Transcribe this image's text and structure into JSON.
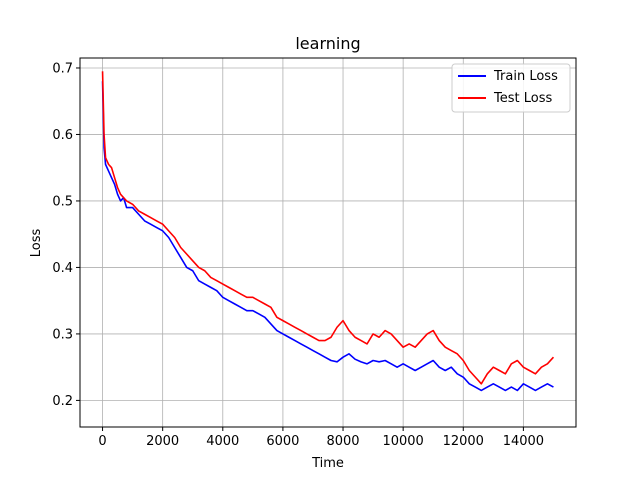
{
  "chart_data": {
    "type": "line",
    "title": "learning",
    "xlabel": "Time",
    "ylabel": "Loss",
    "xlim": [
      -750,
      15750
    ],
    "ylim": [
      0.16,
      0.715
    ],
    "xticks": [
      0,
      2000,
      4000,
      6000,
      8000,
      10000,
      12000,
      14000
    ],
    "yticks": [
      0.2,
      0.3,
      0.4,
      0.5,
      0.6,
      0.7
    ],
    "grid": true,
    "legend_position": "top-right",
    "series": [
      {
        "name": "Train Loss",
        "color": "#0000ff",
        "x": [
          0,
          50,
          100,
          200,
          300,
          400,
          500,
          600,
          700,
          800,
          1000,
          1200,
          1400,
          1600,
          1800,
          2000,
          2200,
          2400,
          2600,
          2800,
          3000,
          3200,
          3400,
          3600,
          3800,
          4000,
          4200,
          4400,
          4600,
          4800,
          5000,
          5200,
          5400,
          5600,
          5800,
          6000,
          6200,
          6400,
          6600,
          6800,
          7000,
          7200,
          7400,
          7600,
          7800,
          8000,
          8200,
          8400,
          8600,
          8800,
          9000,
          9200,
          9400,
          9600,
          9800,
          10000,
          10200,
          10400,
          10600,
          10800,
          11000,
          11200,
          11400,
          11600,
          11800,
          12000,
          12200,
          12400,
          12600,
          12800,
          13000,
          13200,
          13400,
          13600,
          13800,
          14000,
          14200,
          14400,
          14600,
          14800,
          15000
        ],
        "values": [
          0.68,
          0.58,
          0.555,
          0.545,
          0.535,
          0.525,
          0.51,
          0.5,
          0.505,
          0.49,
          0.49,
          0.48,
          0.47,
          0.465,
          0.46,
          0.455,
          0.445,
          0.43,
          0.415,
          0.4,
          0.395,
          0.38,
          0.375,
          0.37,
          0.365,
          0.355,
          0.35,
          0.345,
          0.34,
          0.335,
          0.335,
          0.33,
          0.325,
          0.315,
          0.305,
          0.3,
          0.295,
          0.29,
          0.285,
          0.28,
          0.275,
          0.27,
          0.265,
          0.26,
          0.258,
          0.265,
          0.27,
          0.262,
          0.258,
          0.255,
          0.26,
          0.258,
          0.26,
          0.255,
          0.25,
          0.255,
          0.25,
          0.245,
          0.25,
          0.255,
          0.26,
          0.25,
          0.245,
          0.25,
          0.24,
          0.235,
          0.225,
          0.22,
          0.215,
          0.22,
          0.225,
          0.22,
          0.215,
          0.22,
          0.215,
          0.225,
          0.22,
          0.215,
          0.22,
          0.225,
          0.22
        ]
      },
      {
        "name": "Test Loss",
        "color": "#ff0000",
        "x": [
          0,
          50,
          100,
          200,
          300,
          400,
          500,
          600,
          700,
          800,
          1000,
          1200,
          1400,
          1600,
          1800,
          2000,
          2200,
          2400,
          2600,
          2800,
          3000,
          3200,
          3400,
          3600,
          3800,
          4000,
          4200,
          4400,
          4600,
          4800,
          5000,
          5200,
          5400,
          5600,
          5800,
          6000,
          6200,
          6400,
          6600,
          6800,
          7000,
          7200,
          7400,
          7600,
          7800,
          8000,
          8200,
          8400,
          8600,
          8800,
          9000,
          9200,
          9400,
          9600,
          9800,
          10000,
          10200,
          10400,
          10600,
          10800,
          11000,
          11200,
          11400,
          11600,
          11800,
          12000,
          12200,
          12400,
          12600,
          12800,
          13000,
          13200,
          13400,
          13600,
          13800,
          14000,
          14200,
          14400,
          14600,
          14800,
          15000
        ],
        "values": [
          0.695,
          0.6,
          0.565,
          0.555,
          0.55,
          0.535,
          0.52,
          0.51,
          0.505,
          0.5,
          0.495,
          0.485,
          0.48,
          0.475,
          0.47,
          0.465,
          0.455,
          0.445,
          0.43,
          0.42,
          0.41,
          0.4,
          0.395,
          0.385,
          0.38,
          0.375,
          0.37,
          0.365,
          0.36,
          0.355,
          0.355,
          0.35,
          0.345,
          0.34,
          0.325,
          0.32,
          0.315,
          0.31,
          0.305,
          0.3,
          0.295,
          0.29,
          0.29,
          0.295,
          0.31,
          0.32,
          0.305,
          0.295,
          0.29,
          0.285,
          0.3,
          0.295,
          0.305,
          0.3,
          0.29,
          0.28,
          0.285,
          0.28,
          0.29,
          0.3,
          0.305,
          0.29,
          0.28,
          0.275,
          0.27,
          0.26,
          0.245,
          0.235,
          0.225,
          0.24,
          0.25,
          0.245,
          0.24,
          0.255,
          0.26,
          0.25,
          0.245,
          0.24,
          0.25,
          0.255,
          0.265
        ]
      }
    ]
  }
}
